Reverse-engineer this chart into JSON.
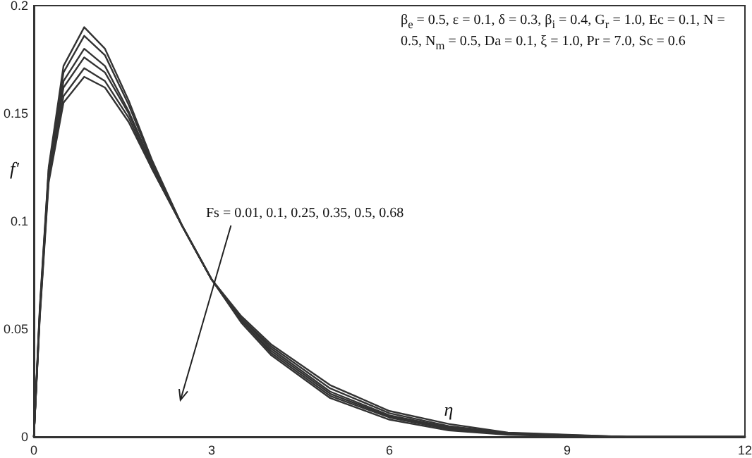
{
  "chart_data": {
    "type": "line",
    "xlabel": "η",
    "ylabel": "f'",
    "x": [
      0,
      0.1,
      0.25,
      0.5,
      0.85,
      1.2,
      1.6,
      2,
      2.5,
      3,
      3.5,
      4,
      5,
      6,
      7,
      8,
      9,
      10,
      12
    ],
    "series": [
      {
        "color": "#333333",
        "values": [
          0,
          0.06,
          0.125,
          0.172,
          0.19,
          0.18,
          0.156,
          0.128,
          0.098,
          0.073,
          0.053,
          0.038,
          0.018,
          0.008,
          0.003,
          0.001,
          0.0003,
          0,
          0
        ]
      },
      {
        "color": "#333333",
        "values": [
          0,
          0.059,
          0.124,
          0.169,
          0.186,
          0.177,
          0.154,
          0.127,
          0.098,
          0.073,
          0.054,
          0.039,
          0.019,
          0.009,
          0.0035,
          0.0012,
          0.0004,
          0,
          0
        ]
      },
      {
        "color": "#333333",
        "values": [
          0,
          0.058,
          0.122,
          0.165,
          0.18,
          0.172,
          0.151,
          0.126,
          0.098,
          0.073,
          0.054,
          0.04,
          0.02,
          0.0095,
          0.004,
          0.0014,
          0.0005,
          0,
          0
        ]
      },
      {
        "color": "#333333",
        "values": [
          0,
          0.057,
          0.121,
          0.162,
          0.176,
          0.169,
          0.15,
          0.125,
          0.098,
          0.073,
          0.055,
          0.041,
          0.021,
          0.01,
          0.0045,
          0.0016,
          0.0006,
          0,
          0
        ]
      },
      {
        "color": "#333333",
        "values": [
          0,
          0.056,
          0.12,
          0.158,
          0.171,
          0.165,
          0.148,
          0.124,
          0.098,
          0.073,
          0.055,
          0.042,
          0.0225,
          0.011,
          0.005,
          0.0018,
          0.0008,
          0,
          0
        ]
      },
      {
        "color": "#333333",
        "values": [
          0,
          0.055,
          0.118,
          0.155,
          0.167,
          0.162,
          0.146,
          0.124,
          0.098,
          0.073,
          0.056,
          0.043,
          0.024,
          0.012,
          0.006,
          0.002,
          0.001,
          0,
          0
        ]
      }
    ],
    "xlim": [
      0,
      12
    ],
    "xticks": [
      0,
      3,
      6,
      9,
      12
    ],
    "ylim": [
      0,
      0.2
    ],
    "yticks": [
      0,
      0.05,
      0.1,
      0.15,
      0.2
    ],
    "grid": false,
    "marker": "none",
    "line_style": "solid",
    "annotations": [
      "β$_{e}$ = 0.5, ε = 0.1, δ = 0.3, β$_{i}$ = 0.4, G$_{r}$ = 1.0, Ec = 0.1, N = 0.5, N$_{m}$ = 0.5, Da = 0.1, ξ = 1.0, Pr = 7.0, Sc = 0.6",
      "Fs = 0.01, 0.1, 0.25, 0.35, 0.5, 0.68"
    ]
  }
}
